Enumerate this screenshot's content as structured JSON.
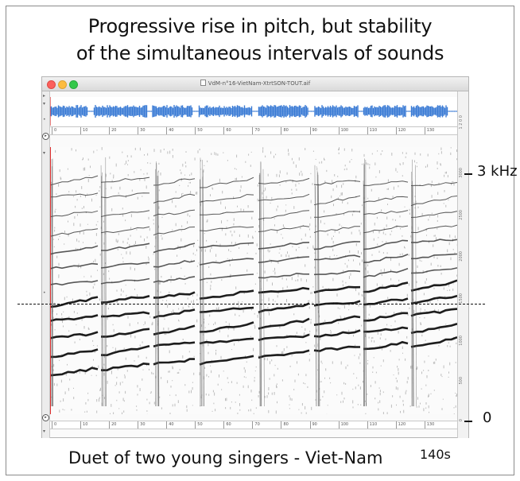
{
  "slide": {
    "title_line1": "Progressive rise in pitch, but stability",
    "title_line2": "of the simultaneous intervals of sounds",
    "caption": "Duet of two young singers - Viet-Nam",
    "duration_label": "140s",
    "freq_top_label": "3 kHz",
    "freq_bottom_label": "0"
  },
  "window": {
    "title": "VdM-n°16-VietNam-XtrtSON-TOUT.aif",
    "traffic_lights": [
      "#fc605c",
      "#fdbc40",
      "#34c84a"
    ]
  },
  "overview_ruler": {
    "ticks": [
      "0",
      "10",
      "20",
      "30",
      "40",
      "50",
      "60",
      "70",
      "80",
      "90",
      "100",
      "110",
      "120",
      "130"
    ]
  },
  "bottom_ruler": {
    "ticks": [
      "0",
      "10",
      "20",
      "30",
      "40",
      "50",
      "60",
      "70",
      "80",
      "90",
      "100",
      "110",
      "120",
      "130"
    ]
  },
  "freq_axis": {
    "labels": [
      "3000",
      "2500",
      "2000",
      "1500",
      "1000",
      "500",
      "0"
    ]
  },
  "colors": {
    "waveform": "#3a7bd5",
    "playhead": "#e03030",
    "spectrogram_ink": "#111111"
  }
}
